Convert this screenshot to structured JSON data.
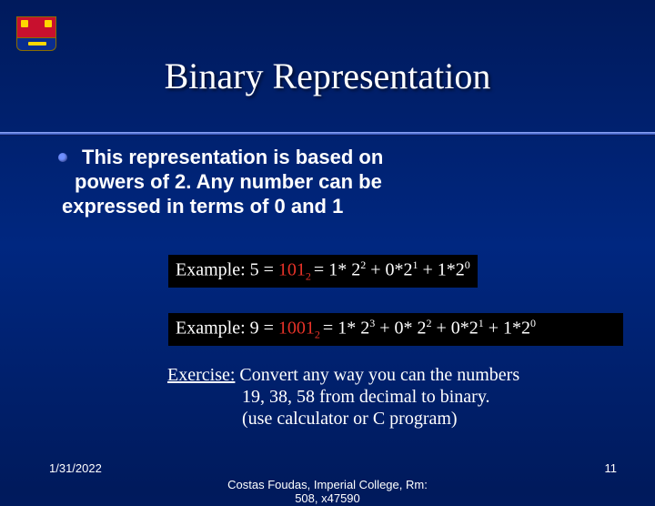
{
  "title": "Binary Representation",
  "bullet": {
    "line1": "This representation is based on",
    "line2": "powers of 2. Any number can be",
    "line3": "expressed in terms of 0 and 1"
  },
  "example1": {
    "prefix": "Example: 5 = ",
    "binary": "101",
    "sub": "2 ",
    "expansion_a": "= 1* 2",
    "e1": "2",
    "expansion_b": " + 0*2",
    "e2": "1",
    "expansion_c": " + 1*2",
    "e3": "0"
  },
  "example2": {
    "prefix": "Example: 9 = ",
    "binary": "1001",
    "sub": "2 ",
    "expansion_a": "= 1* 2",
    "e1": "3",
    "expansion_b": " + 0* 2",
    "e2": "2",
    "expansion_c": " + 0*2",
    "e3": "1",
    "expansion_d": " + 1*2",
    "e4": "0"
  },
  "exercise": {
    "label": "Exercise:",
    "line1": " Convert any way you can the numbers",
    "line2": "19, 38, 58 from decimal to binary.",
    "line3": "(use calculator or C program)"
  },
  "footer": {
    "date": "1/31/2022",
    "center1": "Costas Foudas, Imperial College, Rm:",
    "center2": "508, x47590",
    "page": "11"
  },
  "colors": {
    "bg_top": "#001a5c",
    "bg_mid": "#002780",
    "red": "#e63228",
    "bullet_dot": "#6f90ff"
  }
}
